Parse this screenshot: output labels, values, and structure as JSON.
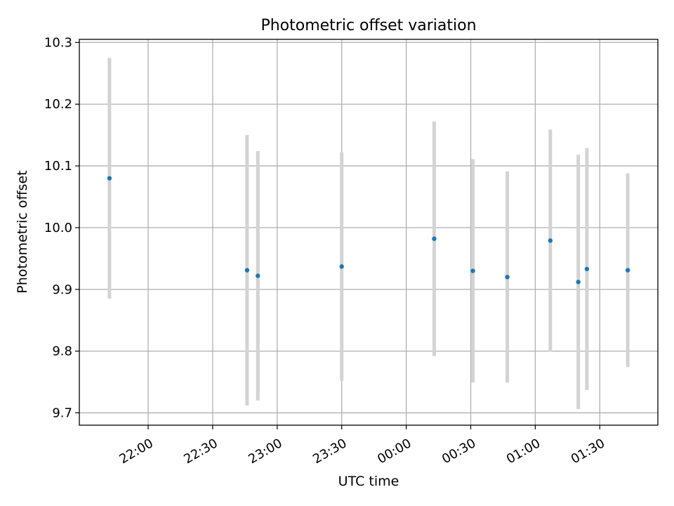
{
  "chart_data": {
    "type": "scatter",
    "title": "Photometric offset variation",
    "xlabel": "UTC time",
    "ylabel": "Photometric offset",
    "x_tick_labels": [
      "22:00",
      "22:30",
      "23:00",
      "23:30",
      "00:00",
      "00:30",
      "01:00",
      "01:30"
    ],
    "y_tick_labels": [
      "9.7",
      "9.8",
      "9.9",
      "10.0",
      "10.1",
      "10.2",
      "10.3"
    ],
    "ylim": [
      9.68,
      10.305
    ],
    "grid": true,
    "points": [
      {
        "time": "21:42",
        "value": 10.08,
        "err": 0.195
      },
      {
        "time": "22:46",
        "value": 9.931,
        "err": 0.219
      },
      {
        "time": "22:51",
        "value": 9.922,
        "err": 0.202
      },
      {
        "time": "23:30",
        "value": 9.937,
        "err": 0.185
      },
      {
        "time": "00:13",
        "value": 9.982,
        "err": 0.19
      },
      {
        "time": "00:31",
        "value": 9.93,
        "err": 0.181
      },
      {
        "time": "00:47",
        "value": 9.92,
        "err": 0.171
      },
      {
        "time": "01:07",
        "value": 9.979,
        "err": 0.18
      },
      {
        "time": "01:20",
        "value": 9.912,
        "err": 0.206
      },
      {
        "time": "01:24",
        "value": 9.933,
        "err": 0.196
      },
      {
        "time": "01:43",
        "value": 9.931,
        "err": 0.157
      }
    ],
    "colors": {
      "point": "#1f77b4",
      "errorbar": "#d3d3d3",
      "grid": "#b0b0b0"
    }
  }
}
